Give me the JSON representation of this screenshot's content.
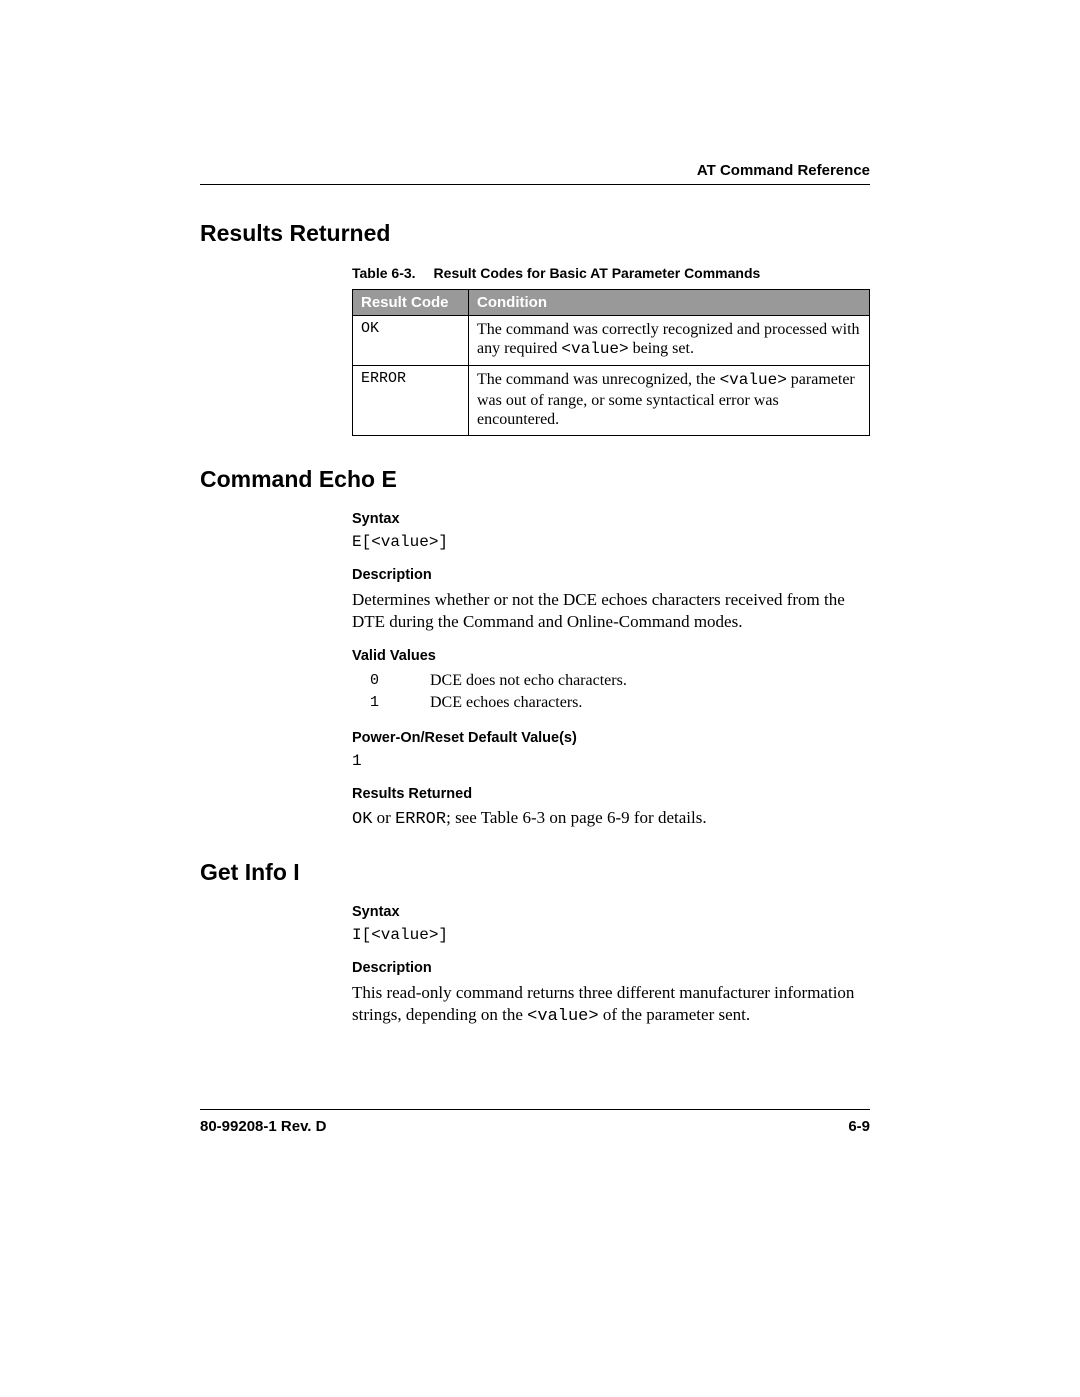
{
  "header": {
    "title": "AT Command Reference"
  },
  "sections": {
    "results_returned": {
      "heading": "Results Returned",
      "table": {
        "caption_num": "Table 6-3.",
        "caption_title": "Result Codes for Basic AT Parameter Commands",
        "columns": [
          "Result Code",
          "Condition"
        ],
        "rows": [
          {
            "code": "OK",
            "cond_pre": "The command was correctly recognized and processed with any required ",
            "cond_mono": "<value>",
            "cond_post": " being set."
          },
          {
            "code": "ERROR",
            "cond_pre": "The command was unrecognized, the ",
            "cond_mono": "<value>",
            "cond_post": " parameter was out of range, or some syntactical error was encountered."
          }
        ]
      }
    },
    "command_echo": {
      "heading": "Command Echo E",
      "syntax_label": "Syntax",
      "syntax": "E[<value>]",
      "description_label": "Description",
      "description": "Determines whether or not the DCE echoes characters received from the DTE during the Command and Online-Command modes.",
      "valid_values_label": "Valid Values",
      "valid_values": [
        {
          "v": "0",
          "d": "DCE does not echo characters."
        },
        {
          "v": "1",
          "d": "DCE echoes characters."
        }
      ],
      "default_label": "Power-On/Reset Default Value(s)",
      "default_value": "1",
      "results_label": "Results Returned",
      "results_mono1": "OK",
      "results_mid": " or ",
      "results_mono2": "ERROR",
      "results_tail": "; see Table 6-3 on page 6-9 for details."
    },
    "get_info": {
      "heading": "Get Info I",
      "syntax_label": "Syntax",
      "syntax": "I[<value>]",
      "description_label": "Description",
      "desc_pre": "This read-only command returns three different manufacturer information strings, depending on the ",
      "desc_mono": "<value>",
      "desc_post": " of the parameter sent."
    }
  },
  "footer": {
    "left": "80-99208-1 Rev. D",
    "right": "6-9"
  }
}
